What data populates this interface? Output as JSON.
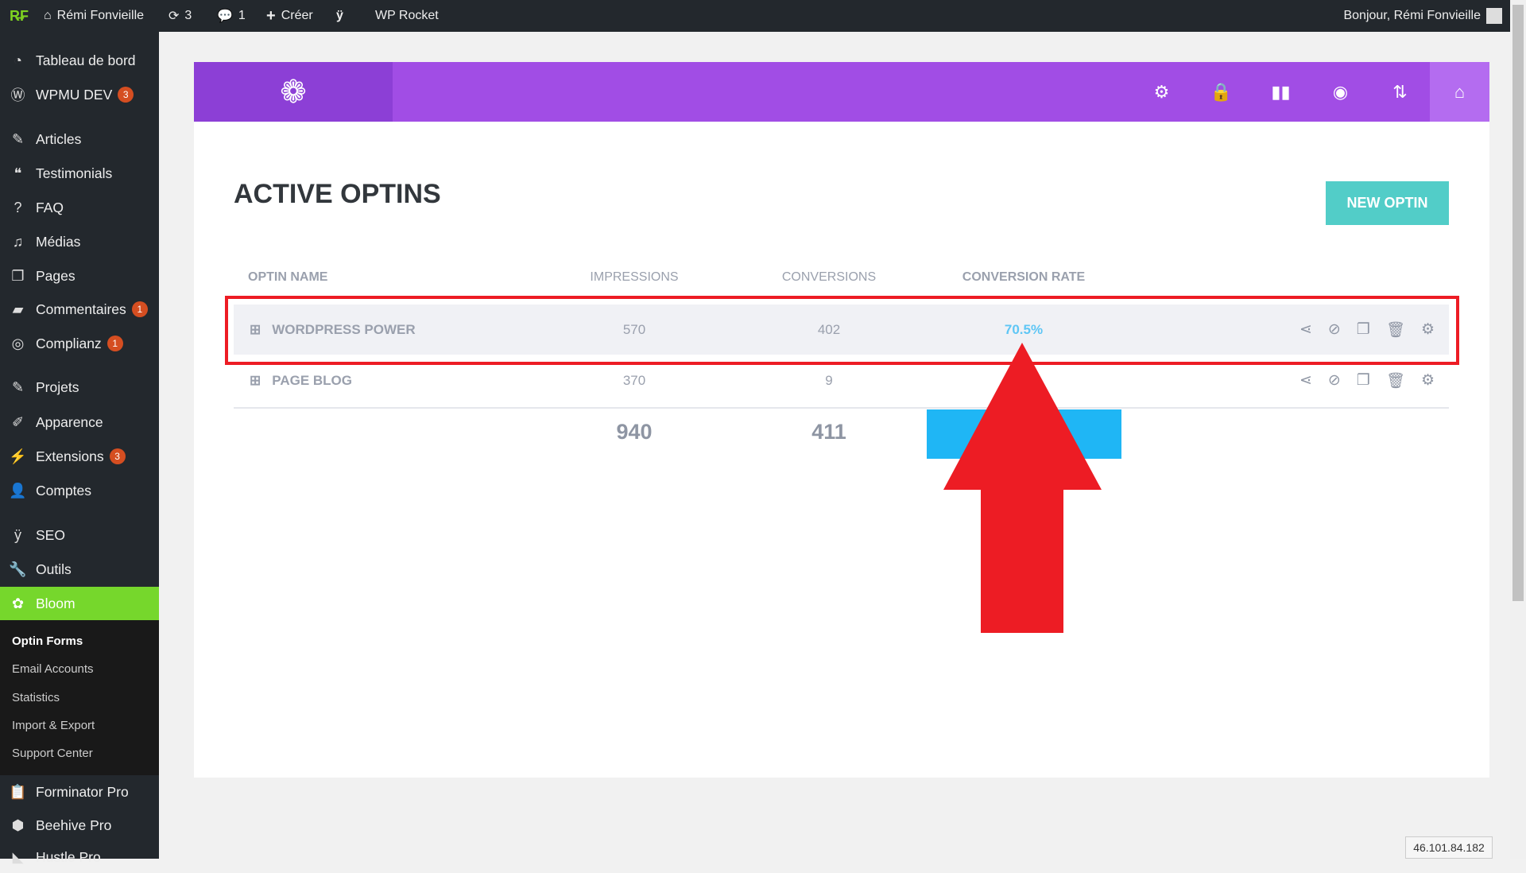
{
  "adminbar": {
    "site": "Rémi Fonvieille",
    "updates": "3",
    "comments": "1",
    "new": "Créer",
    "wprocket": "WP Rocket",
    "greeting": "Bonjour, Rémi Fonvieille"
  },
  "sidebar": {
    "items": [
      {
        "label": "Tableau de bord",
        "icon": "dashboard-icon"
      },
      {
        "label": "WPMU DEV",
        "badge": "3",
        "icon": "wpmudev-icon"
      },
      {
        "label": "Articles",
        "icon": "pin-icon"
      },
      {
        "label": "Testimonials",
        "icon": "quote-icon"
      },
      {
        "label": "FAQ",
        "icon": "question-icon"
      },
      {
        "label": "Médias",
        "icon": "media-icon"
      },
      {
        "label": "Pages",
        "icon": "pages-icon"
      },
      {
        "label": "Commentaires",
        "badge": "1",
        "icon": "comment-icon"
      },
      {
        "label": "Complianz",
        "badge": "1",
        "icon": "complianz-icon"
      },
      {
        "label": "Projets",
        "icon": "pin-icon"
      },
      {
        "label": "Apparence",
        "icon": "brush-icon"
      },
      {
        "label": "Extensions",
        "badge": "3",
        "icon": "plugin-icon"
      },
      {
        "label": "Comptes",
        "icon": "user-icon"
      },
      {
        "label": "SEO",
        "icon": "yoast-icon"
      },
      {
        "label": "Outils",
        "icon": "wrench-icon"
      },
      {
        "label": "Bloom",
        "icon": "bloom-icon"
      },
      {
        "label": "Forminator Pro",
        "icon": "clipboard-icon"
      },
      {
        "label": "Beehive Pro",
        "icon": "beehive-icon"
      },
      {
        "label": "Hustle Pro",
        "icon": "hustle-icon"
      }
    ],
    "submenu": [
      "Optin Forms",
      "Email Accounts",
      "Statistics",
      "Import & Export",
      "Support Center"
    ]
  },
  "main": {
    "title": "ACTIVE OPTINS",
    "new_button": "NEW OPTIN",
    "columns": [
      "OPTIN NAME",
      "IMPRESSIONS",
      "CONVERSIONS",
      "CONVERSION RATE"
    ],
    "rows": [
      {
        "name": "WORDPRESS POWER",
        "impressions": "570",
        "conversions": "402",
        "rate": "70.5%"
      },
      {
        "name": "PAGE BLOG",
        "impressions": "370",
        "conversions": "9",
        "rate": ""
      }
    ],
    "totals": {
      "impressions": "940",
      "conversions": "411"
    }
  },
  "colors": {
    "brand": "#a14de5",
    "accent": "#52cdc8",
    "active_menu": "#76d72c",
    "rate": "#5ec6f5",
    "highlight": "#ed1c24",
    "total_bar": "#1fb6f5"
  },
  "ip": "46.101.84.182"
}
